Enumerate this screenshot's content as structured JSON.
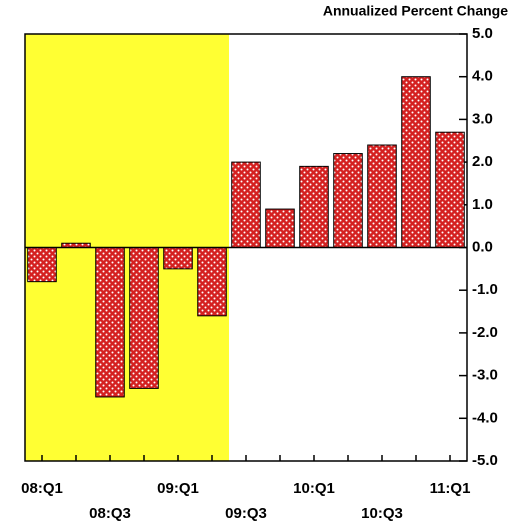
{
  "chart_data": {
    "type": "bar",
    "title": "Annualized Percent Change",
    "categories": [
      "08:Q1",
      null,
      "08:Q3",
      null,
      "09:Q1",
      null,
      "09:Q3",
      null,
      "10:Q1",
      null,
      "10:Q3",
      null,
      "11:Q1"
    ],
    "values": [
      -0.8,
      0.1,
      -3.5,
      -3.3,
      -0.5,
      -1.6,
      2.0,
      0.9,
      1.9,
      2.2,
      2.4,
      4.0,
      2.7
    ],
    "color": "#d42020",
    "ylim": [
      -5,
      5
    ],
    "yticks": [
      {
        "value": -5,
        "label": "-5.0"
      },
      {
        "value": -4,
        "label": "-4.0"
      },
      {
        "value": -3,
        "label": "-3.0"
      },
      {
        "value": -2,
        "label": "-2.0"
      },
      {
        "value": -1,
        "label": "-1.0"
      },
      {
        "value": 0,
        "label": "0.0"
      },
      {
        "value": 1,
        "label": "1.0"
      },
      {
        "value": 2,
        "label": "2.0"
      },
      {
        "value": 3,
        "label": "3.0"
      },
      {
        "value": 4,
        "label": "4.0"
      },
      {
        "value": 5,
        "label": "5.0"
      }
    ],
    "shaded": {
      "first": 0,
      "last": 5,
      "color": "#ffff33"
    }
  }
}
